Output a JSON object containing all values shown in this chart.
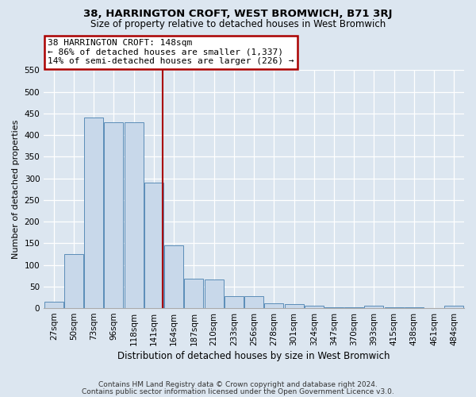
{
  "title": "38, HARRINGTON CROFT, WEST BROMWICH, B71 3RJ",
  "subtitle": "Size of property relative to detached houses in West Bromwich",
  "xlabel": "Distribution of detached houses by size in West Bromwich",
  "ylabel": "Number of detached properties",
  "footnote1": "Contains HM Land Registry data © Crown copyright and database right 2024.",
  "footnote2": "Contains public sector information licensed under the Open Government Licence v3.0.",
  "bar_labels": [
    "27sqm",
    "50sqm",
    "73sqm",
    "96sqm",
    "118sqm",
    "141sqm",
    "164sqm",
    "187sqm",
    "210sqm",
    "233sqm",
    "256sqm",
    "278sqm",
    "301sqm",
    "324sqm",
    "347sqm",
    "370sqm",
    "393sqm",
    "415sqm",
    "438sqm",
    "461sqm",
    "484sqm"
  ],
  "bar_values": [
    14,
    125,
    440,
    430,
    430,
    290,
    145,
    68,
    67,
    27,
    27,
    11,
    9,
    5,
    2,
    2,
    5,
    2,
    2,
    1,
    6
  ],
  "bar_color": "#c8d8ea",
  "bar_edge_color": "#5b8db8",
  "bg_color": "#dce6f0",
  "plot_bg_color": "#dce6f0",
  "grid_color": "#ffffff",
  "vline_x": 5.45,
  "vline_color": "#aa0000",
  "annotation_line1": "38 HARRINGTON CROFT: 148sqm",
  "annotation_line2": "← 86% of detached houses are smaller (1,337)",
  "annotation_line3": "14% of semi-detached houses are larger (226) →",
  "annotation_border_color": "#aa0000",
  "ylim": [
    0,
    550
  ],
  "yticks": [
    0,
    50,
    100,
    150,
    200,
    250,
    300,
    350,
    400,
    450,
    500,
    550
  ],
  "title_fontsize": 9.5,
  "subtitle_fontsize": 8.5,
  "tick_fontsize": 7.5,
  "ylabel_fontsize": 8,
  "xlabel_fontsize": 8.5
}
